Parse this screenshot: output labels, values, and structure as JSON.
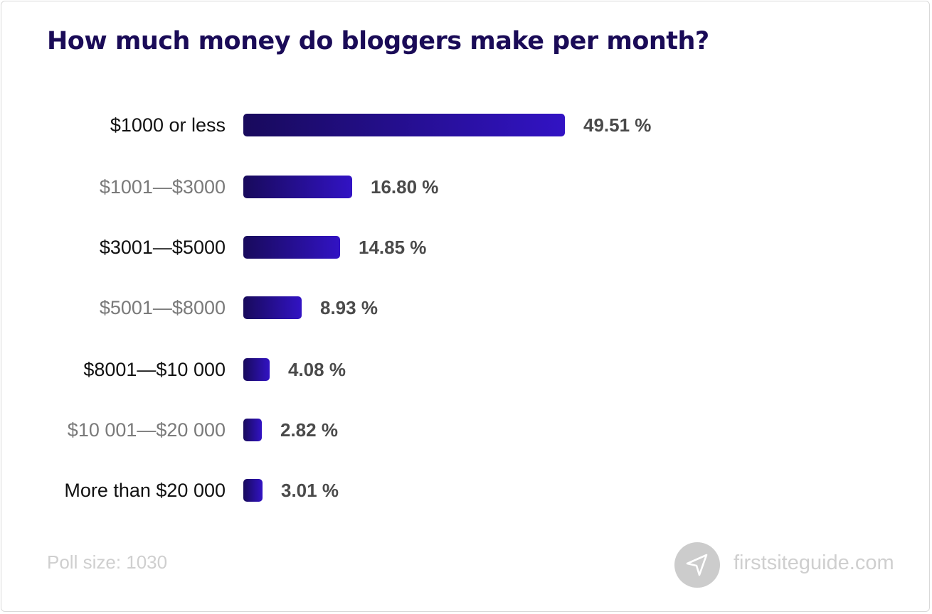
{
  "chart_data": {
    "type": "bar",
    "orientation": "horizontal",
    "title": "How much money do bloggers make per month?",
    "categories": [
      "$1000 or less",
      "$1001—$3000",
      "$3001—$5000",
      "$5001—$8000",
      "$8001—$10 000",
      "$10 001—$20 000",
      "More than $20 000"
    ],
    "values": [
      49.51,
      16.8,
      14.85,
      8.93,
      4.08,
      2.82,
      3.01
    ],
    "value_labels": [
      "49.51 %",
      "16.80 %",
      "14.85 %",
      "8.93 %",
      "4.08 %",
      "2.82 %",
      "3.01 %"
    ],
    "unit": "%",
    "xlabel": "",
    "ylabel": "",
    "grid": false,
    "legend": "none",
    "bar_gradient": [
      "#180a5c",
      "#3213c4"
    ],
    "annotations": [
      "Poll size: 1030"
    ]
  },
  "title": "How much money do bloggers make per month?",
  "footer": {
    "poll_size": "Poll size: 1030",
    "brand": "firstsiteguide.com",
    "brand_icon": "paper-plane-icon"
  },
  "colors": {
    "title": "#1a0b57",
    "bar_start": "#180a5c",
    "bar_end": "#3213c4",
    "value_text": "#4a4a4a",
    "footer_text": "#cfcfcf"
  }
}
